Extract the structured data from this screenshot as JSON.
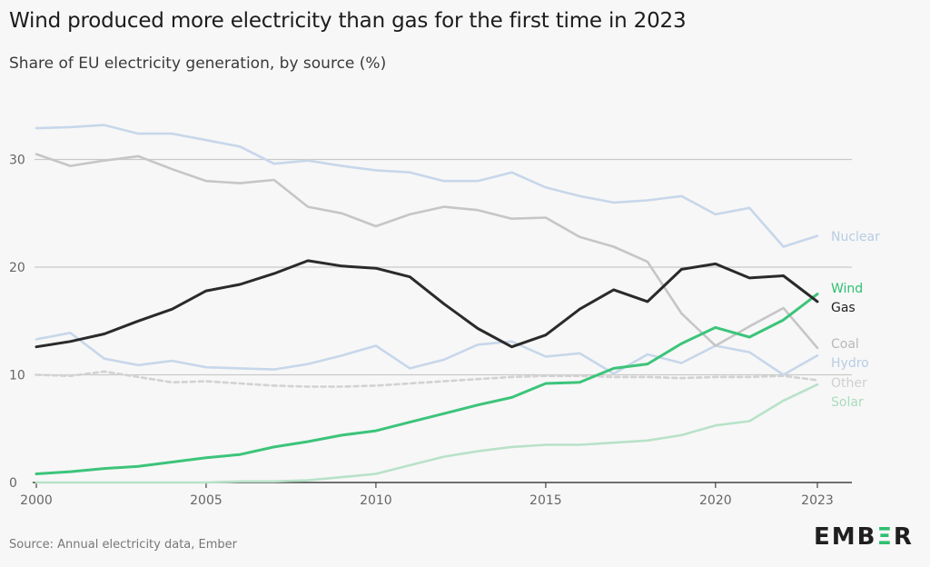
{
  "title": "Wind produced more electricity than gas for the first time in 2023",
  "subtitle": "Share of EU electricity generation, by source (%)",
  "source": "Source: Annual electricity data, Ember",
  "logo": {
    "text": "EMBER"
  },
  "colors": {
    "wind": "#3cc47a",
    "gas": "#2a2a2a",
    "nuclear": "#c7d7ea",
    "coal": "#c6c6c6",
    "hydro": "#c7d7ea",
    "other": "#d2d2d2",
    "solar": "#b8e2c8"
  },
  "chart_data": {
    "type": "line",
    "title": "Wind produced more electricity than gas for the first time in 2023",
    "subtitle": "Share of EU electricity generation, by source (%)",
    "x": [
      2000,
      2001,
      2002,
      2003,
      2004,
      2005,
      2006,
      2007,
      2008,
      2009,
      2010,
      2011,
      2012,
      2013,
      2014,
      2015,
      2016,
      2017,
      2018,
      2019,
      2020,
      2021,
      2022,
      2023
    ],
    "xticks": [
      2000,
      2005,
      2010,
      2015,
      2020,
      2023
    ],
    "ylim": [
      0,
      35
    ],
    "yticks": [
      0,
      10,
      20,
      30
    ],
    "grid": true,
    "legend": "direct labels at line ends (right)",
    "series": [
      {
        "name": "Nuclear",
        "style": "solid",
        "values": [
          32.9,
          33.0,
          33.2,
          32.4,
          32.4,
          31.8,
          31.2,
          29.6,
          29.9,
          29.4,
          29.0,
          28.8,
          28.0,
          28.0,
          28.8,
          27.4,
          26.6,
          26.0,
          26.2,
          26.6,
          24.9,
          25.5,
          21.9,
          22.9
        ]
      },
      {
        "name": "Coal",
        "style": "solid",
        "values": [
          30.5,
          29.4,
          29.9,
          30.3,
          29.1,
          28.0,
          27.8,
          28.1,
          25.6,
          25.0,
          23.8,
          24.9,
          25.6,
          25.3,
          24.5,
          24.6,
          22.8,
          21.9,
          20.5,
          15.7,
          12.7,
          14.5,
          16.2,
          12.5
        ]
      },
      {
        "name": "Gas",
        "style": "solid",
        "values": [
          12.6,
          13.1,
          13.8,
          15.0,
          16.1,
          17.8,
          18.4,
          19.4,
          20.6,
          20.1,
          19.9,
          19.1,
          16.6,
          14.3,
          12.6,
          13.7,
          16.1,
          17.9,
          16.8,
          19.8,
          20.3,
          19.0,
          19.2,
          16.8
        ]
      },
      {
        "name": "Hydro",
        "style": "solid",
        "values": [
          13.3,
          13.9,
          11.5,
          10.9,
          11.3,
          10.7,
          10.6,
          10.5,
          11.0,
          11.8,
          12.7,
          10.6,
          11.4,
          12.8,
          13.1,
          11.7,
          12.0,
          10.1,
          11.9,
          11.1,
          12.7,
          12.1,
          10.0,
          11.8
        ]
      },
      {
        "name": "Other",
        "style": "dashed",
        "values": [
          10.0,
          9.9,
          10.3,
          9.8,
          9.3,
          9.4,
          9.2,
          9.0,
          8.9,
          8.9,
          9.0,
          9.2,
          9.4,
          9.6,
          9.8,
          9.9,
          9.9,
          9.8,
          9.8,
          9.7,
          9.8,
          9.8,
          9.9,
          9.5
        ]
      },
      {
        "name": "Wind",
        "style": "solid",
        "values": [
          0.8,
          1.0,
          1.3,
          1.5,
          1.9,
          2.3,
          2.6,
          3.3,
          3.8,
          4.4,
          4.8,
          5.6,
          6.4,
          7.2,
          7.9,
          9.2,
          9.3,
          10.6,
          11.0,
          12.9,
          14.4,
          13.5,
          15.1,
          17.5
        ]
      },
      {
        "name": "Solar",
        "style": "solid",
        "values": [
          0.0,
          0.0,
          0.0,
          0.0,
          0.0,
          0.0,
          0.1,
          0.1,
          0.2,
          0.5,
          0.8,
          1.6,
          2.4,
          2.9,
          3.3,
          3.5,
          3.5,
          3.7,
          3.9,
          4.4,
          5.3,
          5.7,
          7.6,
          9.1
        ]
      }
    ]
  }
}
